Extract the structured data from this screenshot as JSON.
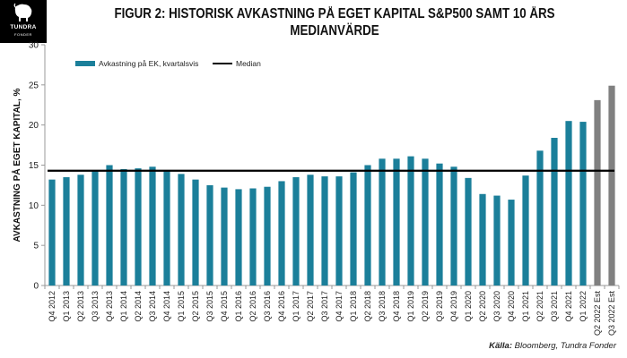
{
  "logo": {
    "name": "TUNDRA",
    "sub": "FONDER"
  },
  "title_line1": "FIGUR 2: HISTORISK AVKASTNING PÅ EGET KAPITAL S&P500 SAMT 10 ÅRS",
  "title_line2": "MEDIANVÄRDE",
  "source": {
    "label": "Källa:",
    "text": " Bloomberg, Tundra Fonder"
  },
  "colors": {
    "actual": "#1b7f9a",
    "estimate": "#808080",
    "median": "#000000"
  },
  "chart_data": {
    "type": "bar",
    "ylabel": "AVKASTNING PÅ EGET KAPITAL, %",
    "ylim": [
      0,
      30
    ],
    "yticks": [
      0,
      5,
      10,
      15,
      20,
      25,
      30
    ],
    "grid": false,
    "legend_position": "top-left",
    "categories": [
      "Q4 2012",
      "Q1 2013",
      "Q2 2013",
      "Q3 2013",
      "Q4 2013",
      "Q1 2014",
      "Q2 2014",
      "Q3 2014",
      "Q4 2014",
      "Q1 2015",
      "Q2 2015",
      "Q3 2015",
      "Q4 2015",
      "Q1 2016",
      "Q2 2016",
      "Q3 2016",
      "Q4 2016",
      "Q1 2017",
      "Q2 2017",
      "Q3 2017",
      "Q4 2017",
      "Q1 2018",
      "Q2 2018",
      "Q3 2018",
      "Q4 2018",
      "Q1 2019",
      "Q2 2019",
      "Q3 2019",
      "Q4 2019",
      "Q1 2020",
      "Q2 2020",
      "Q3 2020",
      "Q4 2020",
      "Q1 2021",
      "Q2 2021",
      "Q3 2021",
      "Q4 2021",
      "Q1 2022",
      "Q2 2022 Est",
      "Q3 2022 Est"
    ],
    "series": [
      {
        "name": "Avkastning på EK, kvartalsvis",
        "values": [
          13.2,
          13.5,
          13.8,
          14.3,
          15.0,
          14.5,
          14.6,
          14.8,
          14.3,
          13.9,
          13.2,
          12.5,
          12.2,
          12.0,
          12.1,
          12.3,
          13.0,
          13.5,
          13.8,
          13.6,
          13.6,
          14.1,
          15.0,
          15.8,
          15.8,
          16.1,
          15.8,
          15.2,
          14.8,
          13.4,
          11.4,
          11.2,
          10.7,
          13.7,
          16.8,
          18.4,
          20.5,
          20.4,
          23.1,
          24.9
        ]
      }
    ],
    "estimate_from_index": 38,
    "median": {
      "name": "Median",
      "value": 14.3
    }
  }
}
